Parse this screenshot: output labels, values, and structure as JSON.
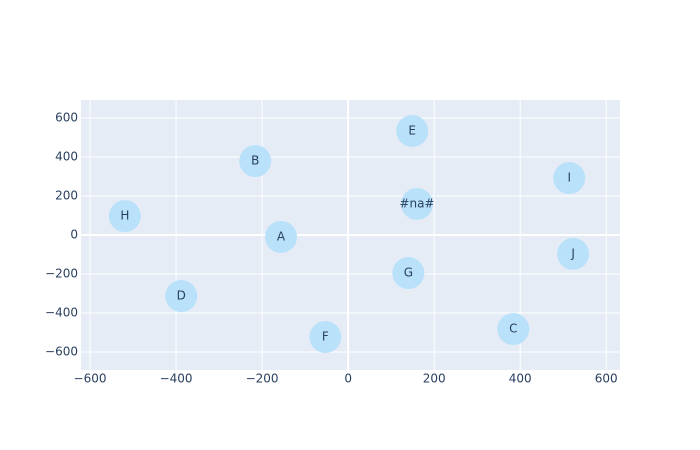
{
  "chart_data": {
    "type": "scatter",
    "x": [
      -156,
      -216,
      384,
      -388,
      149,
      -53,
      140,
      -519,
      514,
      523,
      160
    ],
    "y": [
      -10,
      379,
      -482,
      -313,
      533,
      -523,
      -195,
      97,
      292,
      -97,
      159
    ],
    "text": [
      "A",
      "B",
      "C",
      "D",
      "E",
      "F",
      "G",
      "H",
      "I",
      "J",
      "#na#"
    ],
    "color": "#b9e1fa",
    "xlim": [
      -621,
      632
    ],
    "ylim": [
      -692,
      692
    ],
    "xticks": [
      {
        "value": -600,
        "label": "−600"
      },
      {
        "value": -400,
        "label": "−400"
      },
      {
        "value": -200,
        "label": "−200"
      },
      0,
      200,
      400,
      600
    ],
    "yticks": [
      {
        "value": -600,
        "label": "−600"
      },
      {
        "value": -400,
        "label": "−400"
      },
      {
        "value": -200,
        "label": "−200"
      },
      0,
      200,
      400,
      600
    ],
    "grid": true
  }
}
